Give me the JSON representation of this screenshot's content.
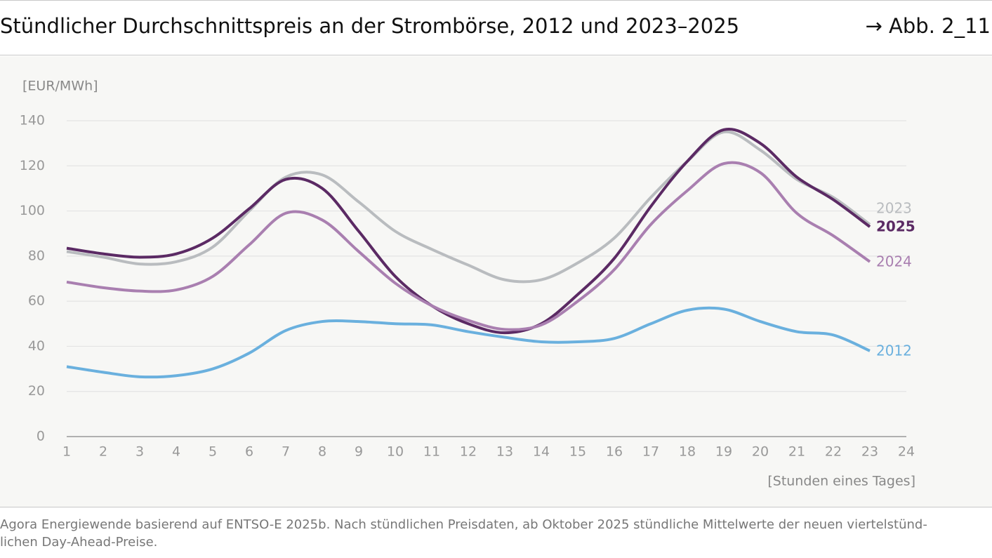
{
  "header": {
    "ref": "→ Abb. 2_11"
  },
  "chart_data": {
    "type": "line",
    "title": "Stündlicher Durchschnittspreis an der Strombörse, 2012 und 2023–2025",
    "y_label": "[EUR/MWh]",
    "x_label": "[Stunden eines Tages]",
    "x": [
      1,
      2,
      3,
      4,
      5,
      6,
      7,
      8,
      9,
      10,
      11,
      12,
      13,
      14,
      15,
      16,
      17,
      18,
      19,
      20,
      21,
      22,
      23
    ],
    "xlim": [
      1,
      24
    ],
    "xticks": [
      1,
      2,
      3,
      4,
      5,
      6,
      7,
      8,
      9,
      10,
      11,
      12,
      13,
      14,
      15,
      16,
      17,
      18,
      19,
      20,
      21,
      22,
      23,
      24
    ],
    "ylim": [
      0,
      140
    ],
    "yticks": [
      0,
      20,
      40,
      60,
      80,
      100,
      120,
      140
    ],
    "grid": true,
    "series": [
      {
        "name": "2023",
        "color": "#b9bcbf",
        "values": [
          82,
          79.5,
          76.5,
          77.5,
          84,
          100,
          115,
          116,
          104,
          91,
          83,
          76,
          69.5,
          69.5,
          77,
          88,
          106,
          122,
          135,
          127,
          114,
          106,
          94
        ]
      },
      {
        "name": "2025",
        "color": "#5b2a64",
        "values": [
          83.5,
          81,
          79.5,
          81,
          88,
          101,
          114,
          110,
          91,
          71,
          58,
          50,
          46,
          50,
          63,
          79,
          102,
          122,
          136,
          130,
          115,
          105,
          93
        ]
      },
      {
        "name": "2024",
        "color": "#a97fb0",
        "values": [
          68.5,
          66,
          64.5,
          65,
          71,
          85,
          99,
          96,
          82,
          68,
          58,
          51.5,
          47.5,
          49.5,
          60,
          74,
          94,
          109,
          121,
          117,
          99,
          89,
          77.5
        ]
      },
      {
        "name": "2012",
        "color": "#6ab0de",
        "values": [
          31,
          28.5,
          26.5,
          27,
          30,
          37,
          47,
          51,
          51,
          50,
          49.5,
          46.5,
          44,
          42,
          42,
          43.5,
          50,
          56,
          56.5,
          51,
          46.5,
          45,
          38
        ]
      }
    ]
  },
  "footer": {
    "lines": [
      "Agora Energiewende basierend auf ENTSO-E 2025b. Nach stündlichen Preisdaten, ab Oktober 2025 stündliche Mittelwerte der neuen viertelstünd-",
      "lichen Day-Ahead-Preise."
    ]
  }
}
